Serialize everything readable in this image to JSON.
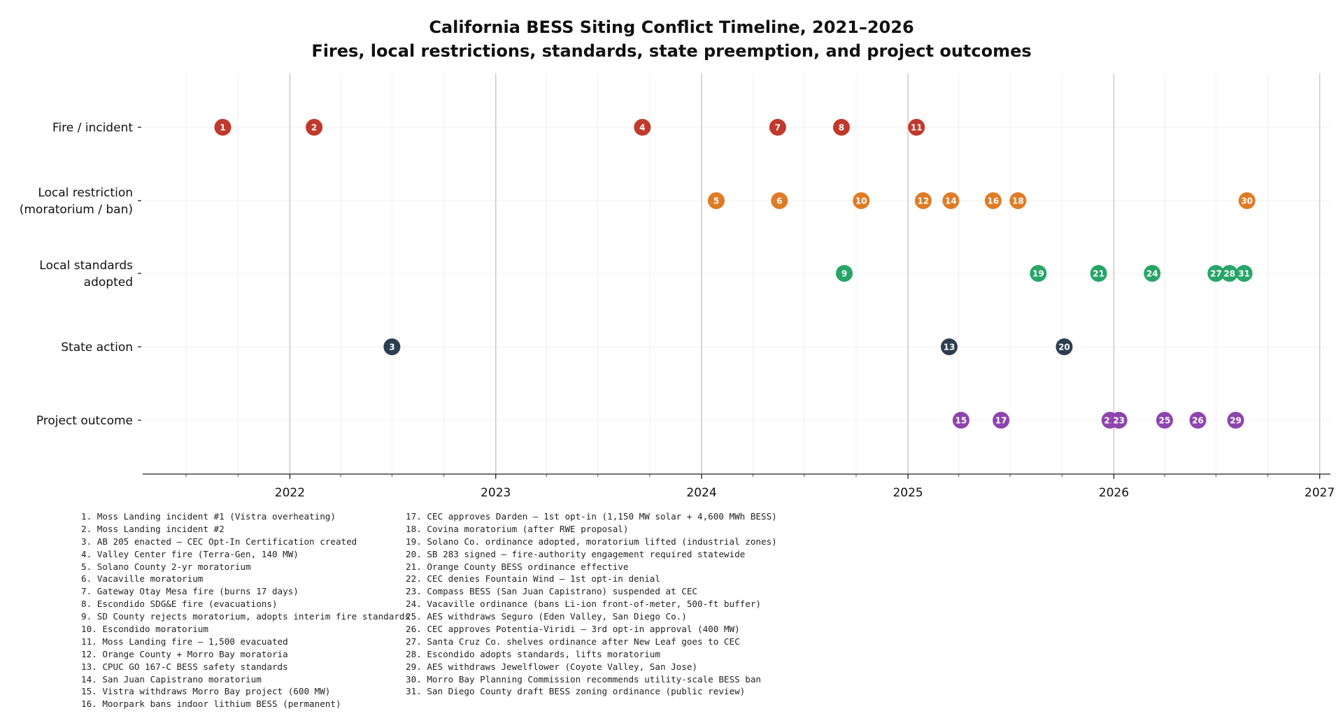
{
  "chart_data": {
    "type": "scatter",
    "title": "California BESS Siting Conflict Timeline, 2021–2026",
    "subtitle": "Fires, local restrictions, standards, state preemption, and project outcomes",
    "xlabel": "",
    "ylabel": "",
    "xlim": [
      "2021-04-15",
      "2027-01-20"
    ],
    "x_ticks": [
      "2022",
      "2023",
      "2024",
      "2025",
      "2026",
      "2027"
    ],
    "grid": true,
    "categories": [
      {
        "label": "Fire / incident",
        "color": "#c0392b"
      },
      {
        "label": "Local restriction\n(moratorium / ban)",
        "color": "#e07b25"
      },
      {
        "label": "Local standards\nadopted",
        "color": "#27a567"
      },
      {
        "label": "State action",
        "color": "#2c3e50"
      },
      {
        "label": "Project outcome",
        "color": "#8e44ad"
      }
    ],
    "events": [
      {
        "num": "1",
        "row": 0,
        "date": "2021-09-04"
      },
      {
        "num": "2",
        "row": 0,
        "date": "2022-02-13"
      },
      {
        "num": "3",
        "row": 3,
        "date": "2022-07-01"
      },
      {
        "num": "4",
        "row": 0,
        "date": "2023-09-18"
      },
      {
        "num": "5",
        "row": 1,
        "date": "2024-01-27"
      },
      {
        "num": "6",
        "row": 1,
        "date": "2024-05-18"
      },
      {
        "num": "7",
        "row": 0,
        "date": "2024-05-15"
      },
      {
        "num": "8",
        "row": 0,
        "date": "2024-09-05"
      },
      {
        "num": "9",
        "row": 2,
        "date": "2024-09-10"
      },
      {
        "num": "10",
        "row": 1,
        "date": "2024-10-10"
      },
      {
        "num": "11",
        "row": 0,
        "date": "2025-01-16"
      },
      {
        "num": "12",
        "row": 1,
        "date": "2025-01-28"
      },
      {
        "num": "13",
        "row": 3,
        "date": "2025-03-15"
      },
      {
        "num": "14",
        "row": 1,
        "date": "2025-03-18"
      },
      {
        "num": "15",
        "row": 4,
        "date": "2025-04-05"
      },
      {
        "num": "16",
        "row": 1,
        "date": "2025-06-01"
      },
      {
        "num": "17",
        "row": 4,
        "date": "2025-06-15"
      },
      {
        "num": "18",
        "row": 1,
        "date": "2025-07-15"
      },
      {
        "num": "19",
        "row": 2,
        "date": "2025-08-20"
      },
      {
        "num": "20",
        "row": 3,
        "date": "2025-10-05"
      },
      {
        "num": "21",
        "row": 2,
        "date": "2025-12-05"
      },
      {
        "num": "22",
        "row": 4,
        "date": "2025-12-25"
      },
      {
        "num": "23",
        "row": 4,
        "date": "2026-01-10"
      },
      {
        "num": "24",
        "row": 2,
        "date": "2026-03-10"
      },
      {
        "num": "25",
        "row": 4,
        "date": "2026-04-01"
      },
      {
        "num": "26",
        "row": 4,
        "date": "2026-05-30"
      },
      {
        "num": "27",
        "row": 2,
        "date": "2026-07-01"
      },
      {
        "num": "28",
        "row": 2,
        "date": "2026-07-25"
      },
      {
        "num": "29",
        "row": 4,
        "date": "2026-08-05"
      },
      {
        "num": "30",
        "row": 1,
        "date": "2026-08-25"
      },
      {
        "num": "31",
        "row": 2,
        "date": "2026-08-20"
      }
    ],
    "legend_left": [
      "1. Moss Landing incident #1 (Vistra overheating)",
      "2. Moss Landing incident #2",
      "3. AB 205 enacted — CEC Opt-In Certification created",
      "4. Valley Center fire (Terra-Gen, 140 MW)",
      "5. Solano County 2-yr moratorium",
      "6. Vacaville moratorium",
      "7. Gateway Otay Mesa fire (burns 17 days)",
      "8. Escondido SDG&E fire (evacuations)",
      "9. SD County rejects moratorium, adopts interim fire standards",
      "10. Escondido moratorium",
      "11. Moss Landing fire — 1,500 evacuated",
      "12. Orange County + Morro Bay moratoria",
      "13. CPUC GO 167-C BESS safety standards",
      "14. San Juan Capistrano moratorium",
      "15. Vistra withdraws Morro Bay project (600 MW)",
      "16. Moorpark bans indoor lithium BESS (permanent)"
    ],
    "legend_right": [
      "17. CEC approves Darden — 1st opt-in (1,150 MW solar + 4,600 MWh BESS)",
      "18. Covina moratorium (after RWE proposal)",
      "19. Solano Co. ordinance adopted, moratorium lifted (industrial zones)",
      "20. SB 283 signed — fire-authority engagement required statewide",
      "21. Orange County BESS ordinance effective",
      "22. CEC denies Fountain Wind — 1st opt-in denial",
      "23. Compass BESS (San Juan Capistrano) suspended at CEC",
      "24. Vacaville ordinance (bans Li-ion front-of-meter, 500-ft buffer)",
      "25. AES withdraws Seguro (Eden Valley, San Diego Co.)",
      "26. CEC approves Potentia-Viridi — 3rd opt-in approval (400 MW)",
      "27. Santa Cruz Co. shelves ordinance after New Leaf goes to CEC",
      "28. Escondido adopts standards, lifts moratorium",
      "29. AES withdraws Jewelflower (Coyote Valley, San Jose)",
      "30. Morro Bay Planning Commission recommends utility-scale BESS ban",
      "31. San Diego County draft BESS zoning ordinance (public review)"
    ]
  }
}
